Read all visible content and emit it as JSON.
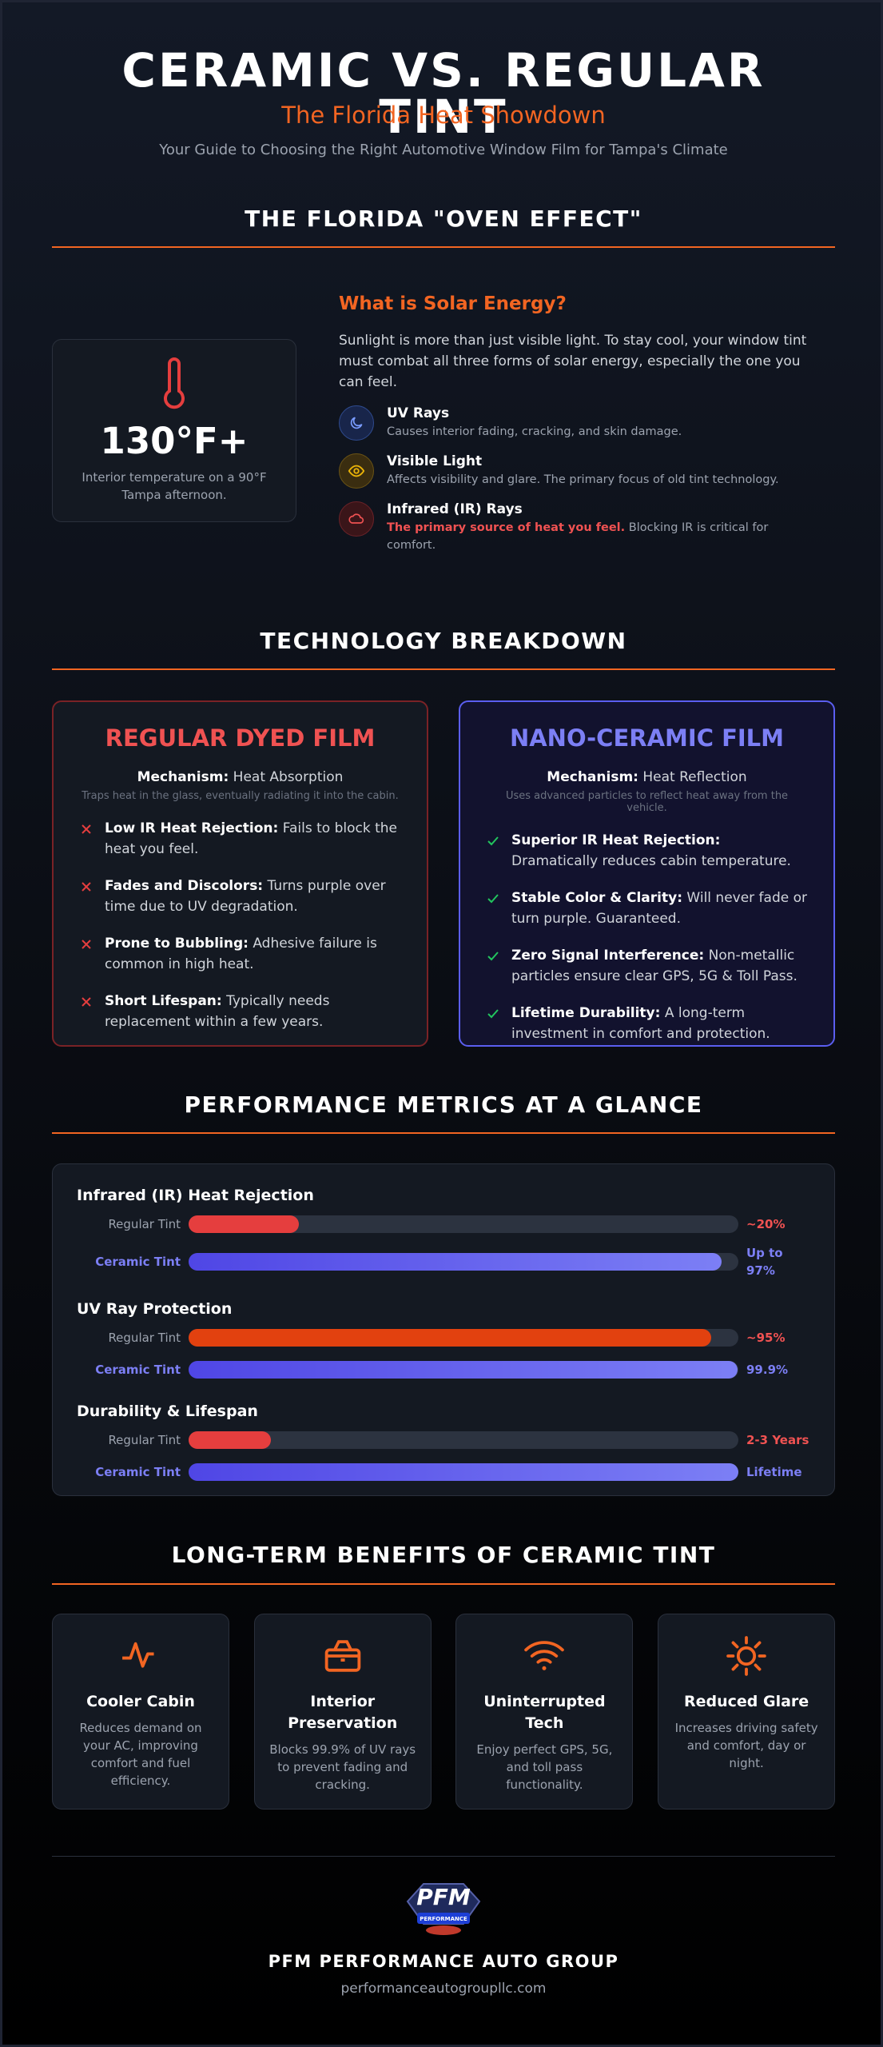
{
  "header": {
    "title": "CERAMIC VS. REGULAR TINT",
    "subtitle": "The Florida Heat Showdown",
    "tagline": "Your Guide to Choosing the Right Automotive Window Film for Tampa's Climate"
  },
  "oven_effect": {
    "heading": "THE FLORIDA \"OVEN EFFECT\"",
    "stat": {
      "value": "130°F+",
      "caption": "Interior temperature on a 90°F Tampa afternoon."
    },
    "solar": {
      "heading": "What is Solar Energy?",
      "text": "Sunlight is more than just visible light. To stay cool, your window tint must combat all three forms of solar energy, especially the one you can feel.",
      "items": [
        {
          "title": "UV Rays",
          "text": "Causes interior fading, cracking, and skin damage."
        },
        {
          "title": "Visible Light",
          "text": "Affects visibility and glare. The primary focus of old tint technology."
        },
        {
          "title": "Infrared (IR) Rays",
          "highlight": "The primary source of heat you feel.",
          "text": "Blocking IR is critical for comfort."
        }
      ]
    }
  },
  "technology": {
    "heading": "TECHNOLOGY BREAKDOWN",
    "cards": [
      {
        "title": "REGULAR DYED FILM",
        "mechanism_label": "Mechanism:",
        "mechanism": "Heat Absorption",
        "note": "Traps heat in the glass, eventually radiating it into the cabin.",
        "points": [
          {
            "title": "Low IR Heat Rejection:",
            "text": "Fails to block the heat you feel."
          },
          {
            "title": "Fades and Discolors:",
            "text": "Turns purple over time due to UV degradation."
          },
          {
            "title": "Prone to Bubbling:",
            "text": "Adhesive failure is common in high heat."
          },
          {
            "title": "Short Lifespan:",
            "text": "Typically needs replacement within a few years."
          }
        ]
      },
      {
        "title": "NANO-CERAMIC FILM",
        "mechanism_label": "Mechanism:",
        "mechanism": "Heat Reflection",
        "note": "Uses advanced particles to reflect heat away from the vehicle.",
        "points": [
          {
            "title": "Superior IR Heat Rejection:",
            "text": "Dramatically reduces cabin temperature."
          },
          {
            "title": "Stable Color & Clarity:",
            "text": "Will never fade or turn purple. Guaranteed."
          },
          {
            "title": "Zero Signal Interference:",
            "text": "Non-metallic particles ensure clear GPS, 5G & Toll Pass."
          },
          {
            "title": "Lifetime Durability:",
            "text": "A long-term investment in comfort and protection."
          }
        ]
      }
    ]
  },
  "performance": {
    "heading": "PERFORMANCE METRICS AT A GLANCE",
    "metrics": [
      {
        "title": "Infrared (IR) Heat Rejection",
        "rows": [
          {
            "label": "Regular Tint",
            "value": 20,
            "value_label": "~20%"
          },
          {
            "label": "Ceramic Tint",
            "value": 97,
            "value_label": "Up to 97%"
          }
        ]
      },
      {
        "title": "UV Ray Protection",
        "rows": [
          {
            "label": "Regular Tint",
            "value": 95,
            "value_label": "~95%"
          },
          {
            "label": "Ceramic Tint",
            "value": 99.9,
            "value_label": "99.9%"
          }
        ]
      },
      {
        "title": "Durability & Lifespan",
        "rows": [
          {
            "label": "Regular Tint",
            "value": 15,
            "value_label": "2-3 Years"
          },
          {
            "label": "Ceramic Tint",
            "value": 100,
            "value_label": "Lifetime"
          }
        ]
      }
    ]
  },
  "benefits": {
    "heading": "LONG-TERM BENEFITS OF CERAMIC TINT",
    "items": [
      {
        "title": "Cooler Cabin",
        "text": "Reduces demand on your AC, improving comfort and fuel efficiency."
      },
      {
        "title": "Interior Preservation",
        "text": "Blocks 99.9% of UV rays to prevent fading and cracking."
      },
      {
        "title": "Uninterrupted Tech",
        "text": "Enjoy perfect GPS, 5G, and toll pass functionality."
      },
      {
        "title": "Reduced Glare",
        "text": "Increases driving safety and comfort, day or night."
      }
    ]
  },
  "footer": {
    "logo": "PFM",
    "logo_sub": "PERFORMANCE",
    "company": "PFM PERFORMANCE AUTO GROUP",
    "url": "performanceautogroupllc.com"
  }
}
